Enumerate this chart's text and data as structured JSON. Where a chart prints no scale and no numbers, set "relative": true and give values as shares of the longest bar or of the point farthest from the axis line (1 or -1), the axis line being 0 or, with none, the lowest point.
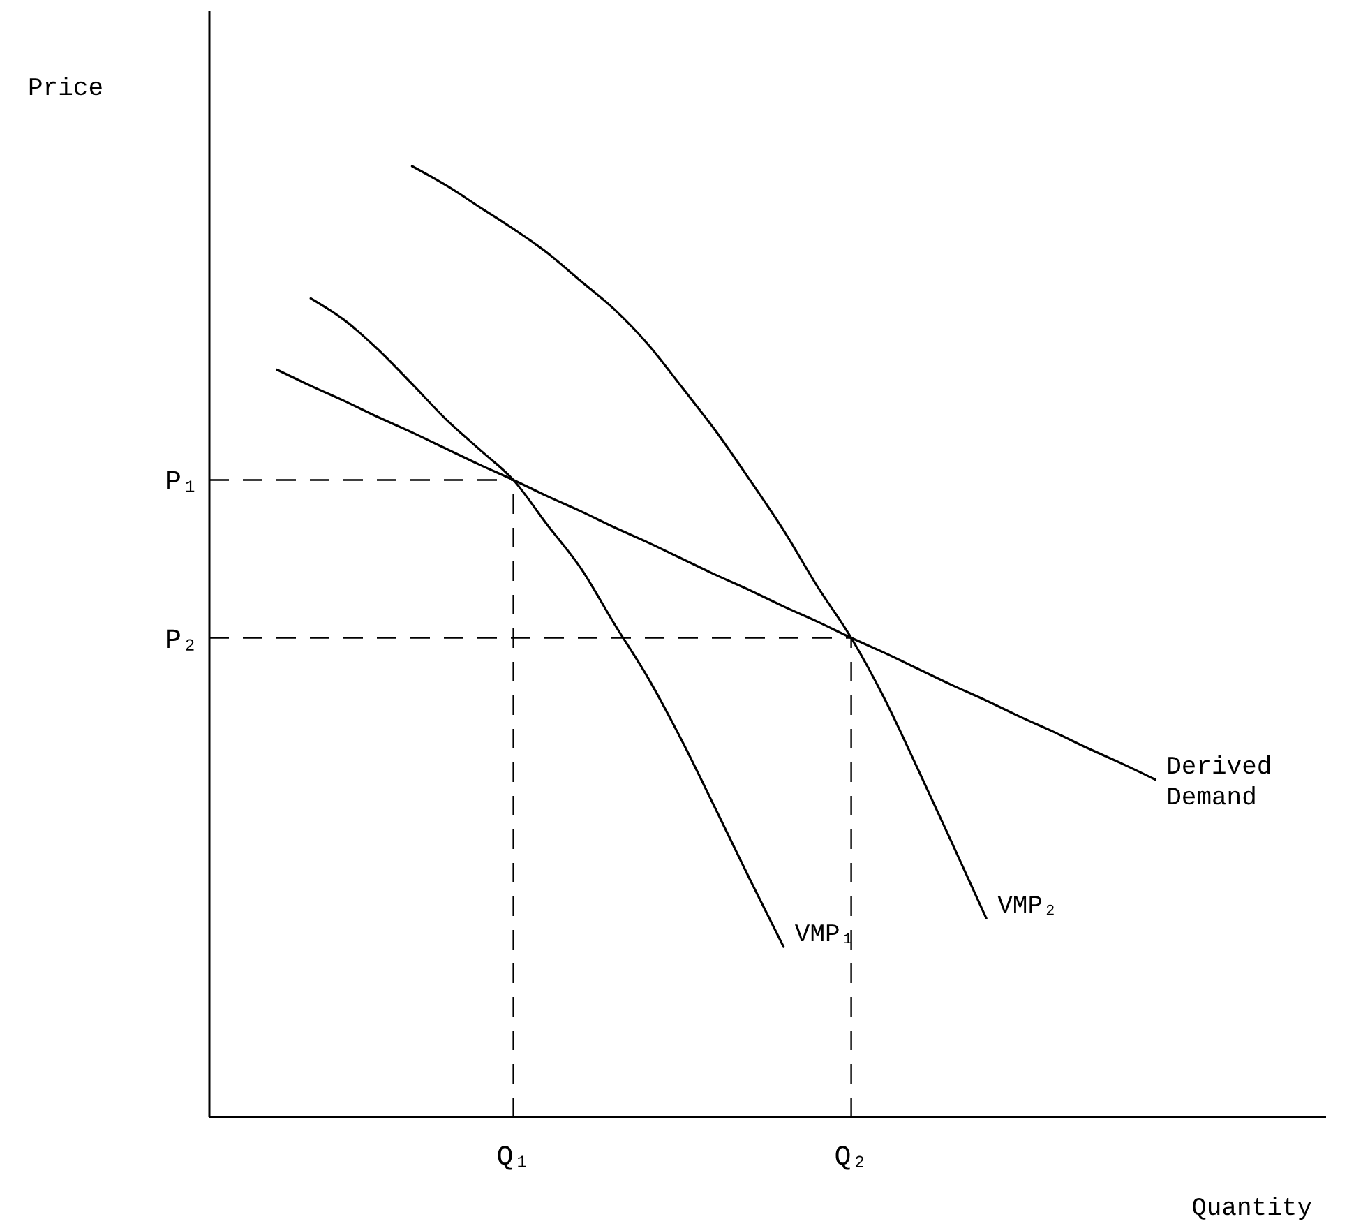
{
  "chart_data": {
    "type": "line",
    "xlabel": "Quantity",
    "ylabel": "Price",
    "relative": true,
    "marker": "none",
    "categories": [
      null,
      null,
      null,
      null,
      null,
      null,
      null,
      null,
      null,
      "Q₁",
      null,
      null,
      null,
      null,
      null,
      null,
      null,
      null,
      null,
      "Q₂",
      null,
      null,
      null,
      null,
      null,
      null,
      null,
      null,
      null,
      null,
      null,
      null,
      null,
      null
    ],
    "series": [
      {
        "name": "Derived Demand",
        "color": "#000000",
        "line_style": "solid",
        "values": [
          null,
          null,
          0.786,
          0.769,
          0.753,
          0.736,
          0.72,
          0.703,
          0.686,
          0.67,
          0.653,
          0.637,
          0.62,
          0.604,
          0.587,
          0.57,
          0.554,
          0.537,
          0.521,
          0.504,
          0.488,
          0.471,
          0.454,
          0.438,
          0.421,
          0.405,
          0.388,
          0.372,
          0.355,
          null,
          null,
          null,
          null,
          null
        ]
      },
      {
        "name": "VMP₁",
        "color": "#000000",
        "line_style": "solid",
        "values": [
          null,
          null,
          null,
          0.861,
          0.838,
          0.807,
          0.771,
          0.734,
          0.702,
          0.67,
          0.623,
          0.577,
          0.518,
          0.461,
          0.395,
          0.323,
          0.25,
          0.179,
          null,
          null,
          null,
          null,
          null,
          null,
          null,
          null,
          null,
          null,
          null,
          null,
          null,
          null,
          null,
          null
        ]
      },
      {
        "name": "VMP₂",
        "color": "#000000",
        "line_style": "solid",
        "values": [
          null,
          null,
          null,
          null,
          null,
          null,
          1.0,
          0.98,
          0.957,
          0.934,
          0.909,
          0.879,
          0.849,
          0.812,
          0.767,
          0.721,
          0.67,
          0.617,
          0.558,
          0.504,
          0.439,
          0.364,
          0.287,
          0.209,
          null,
          null,
          null,
          null,
          null,
          null,
          null,
          null,
          null,
          null
        ]
      }
    ],
    "ref_lines": [
      {
        "axis": "y",
        "value": 0.67,
        "label": "P₁",
        "color": "#000000",
        "line_style": "dashed"
      },
      {
        "axis": "x",
        "value": "Q₁",
        "color": "#000000",
        "line_style": "dashed"
      },
      {
        "axis": "y",
        "value": 0.504,
        "label": "P₂",
        "color": "#000000",
        "line_style": "dashed"
      },
      {
        "axis": "x",
        "value": "Q₂",
        "color": "#000000",
        "line_style": "dashed"
      }
    ]
  }
}
